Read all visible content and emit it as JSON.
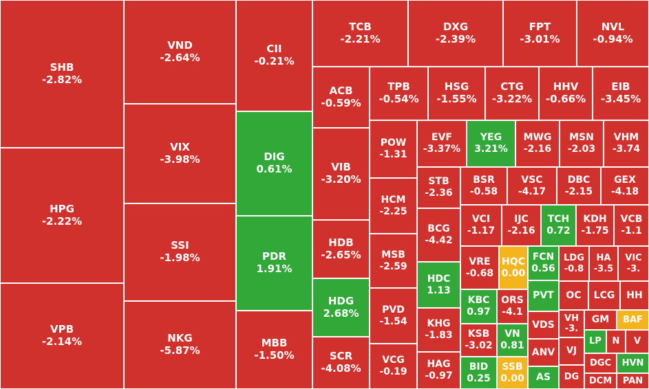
{
  "chart_data": {
    "type": "treemap",
    "colors": {
      "down": "#d0312d",
      "up": "#31a838",
      "flat": "#f3b51b"
    },
    "tiles": [
      {
        "symbol": "SHB",
        "change": "-2.82%"
      },
      {
        "symbol": "HPG",
        "change": "-2.22%"
      },
      {
        "symbol": "VPB",
        "change": "-2.14%"
      },
      {
        "symbol": "VND",
        "change": "-2.64%"
      },
      {
        "symbol": "VIX",
        "change": "-3.98%"
      },
      {
        "symbol": "SSI",
        "change": "-1.98%"
      },
      {
        "symbol": "NKG",
        "change": "-5.87%"
      },
      {
        "symbol": "CII",
        "change": "-0.21%"
      },
      {
        "symbol": "DIG",
        "change": "0.61%"
      },
      {
        "symbol": "PDR",
        "change": "1.91%"
      },
      {
        "symbol": "MBB",
        "change": "-1.50%"
      },
      {
        "symbol": "TCB",
        "change": "-2.21%"
      },
      {
        "symbol": "DXG",
        "change": "-2.39%"
      },
      {
        "symbol": "FPT",
        "change": "-3.01%"
      },
      {
        "symbol": "NVL",
        "change": "-0.94%"
      },
      {
        "symbol": "ACB",
        "change": "-0.59%"
      },
      {
        "symbol": "VIB",
        "change": "-3.20%"
      },
      {
        "symbol": "HDB",
        "change": "-2.65%"
      },
      {
        "symbol": "HDG",
        "change": "2.68%"
      },
      {
        "symbol": "SCR",
        "change": "-4.08%"
      },
      {
        "symbol": "TPB",
        "change": "-0.54%"
      },
      {
        "symbol": "HSG",
        "change": "-1.55%"
      },
      {
        "symbol": "CTG",
        "change": "-3.22%"
      },
      {
        "symbol": "HHV",
        "change": "-0.66%"
      },
      {
        "symbol": "EIB",
        "change": "-3.45%"
      },
      {
        "symbol": "POW",
        "change": "-1.31"
      },
      {
        "symbol": "HCM",
        "change": "-2.25"
      },
      {
        "symbol": "MSB",
        "change": "-2.59"
      },
      {
        "symbol": "PVD",
        "change": "-1.54"
      },
      {
        "symbol": "VCG",
        "change": "-0.19"
      },
      {
        "symbol": "EVF",
        "change": "-3.37%"
      },
      {
        "symbol": "YEG",
        "change": "3.21%"
      },
      {
        "symbol": "MWG",
        "change": "-2.16"
      },
      {
        "symbol": "MSN",
        "change": "-2.03"
      },
      {
        "symbol": "VHM",
        "change": "-3.74"
      },
      {
        "symbol": "STB",
        "change": "-2.36"
      },
      {
        "symbol": "BCG",
        "change": "-4.42"
      },
      {
        "symbol": "HDC",
        "change": "1.13"
      },
      {
        "symbol": "KHG",
        "change": "-1.83"
      },
      {
        "symbol": "HAG",
        "change": "-0.97"
      },
      {
        "symbol": "BSR",
        "change": "-0.58"
      },
      {
        "symbol": "VSC",
        "change": "-4.17"
      },
      {
        "symbol": "DBC",
        "change": "-2.15"
      },
      {
        "symbol": "GEX",
        "change": "-4.18"
      },
      {
        "symbol": "VCI",
        "change": "-1.17"
      },
      {
        "symbol": "IJC",
        "change": "-2.16"
      },
      {
        "symbol": "TCH",
        "change": "0.72"
      },
      {
        "symbol": "KDH",
        "change": "-1.75"
      },
      {
        "symbol": "VCB",
        "change": "-1.1"
      },
      {
        "symbol": "VRE",
        "change": "-0.68"
      },
      {
        "symbol": "HQC",
        "change": "0.00"
      },
      {
        "symbol": "FCN",
        "change": "0.56"
      },
      {
        "symbol": "LDG",
        "change": "-0.8"
      },
      {
        "symbol": "HA",
        "change": "-3.5"
      },
      {
        "symbol": "VIC",
        "change": "-3."
      },
      {
        "symbol": "KBC",
        "change": "0.97"
      },
      {
        "symbol": "ORS",
        "change": "-4.1"
      },
      {
        "symbol": "PVT",
        "change": ""
      },
      {
        "symbol": "OC",
        "change": ""
      },
      {
        "symbol": "LCG",
        "change": ""
      },
      {
        "symbol": "HH",
        "change": ""
      },
      {
        "symbol": "VDS",
        "change": ""
      },
      {
        "symbol": "VH",
        "change": "-3."
      },
      {
        "symbol": "GM",
        "change": ""
      },
      {
        "symbol": "BAF",
        "change": ""
      },
      {
        "symbol": "KSB",
        "change": "-3.02"
      },
      {
        "symbol": "VN",
        "change": "0.81"
      },
      {
        "symbol": "ANV",
        "change": ""
      },
      {
        "symbol": "VJ",
        "change": ""
      },
      {
        "symbol": "LP",
        "change": ""
      },
      {
        "symbol": "N",
        "change": ""
      },
      {
        "symbol": "V",
        "change": ""
      },
      {
        "symbol": "BID",
        "change": "0.25"
      },
      {
        "symbol": "SSB",
        "change": "0.00"
      },
      {
        "symbol": "AS",
        "change": ""
      },
      {
        "symbol": "DG",
        "change": ""
      },
      {
        "symbol": "DGC",
        "change": ""
      },
      {
        "symbol": "HVN",
        "change": ""
      },
      {
        "symbol": "DCM",
        "change": ""
      },
      {
        "symbol": "PAN",
        "change": ""
      }
    ]
  }
}
